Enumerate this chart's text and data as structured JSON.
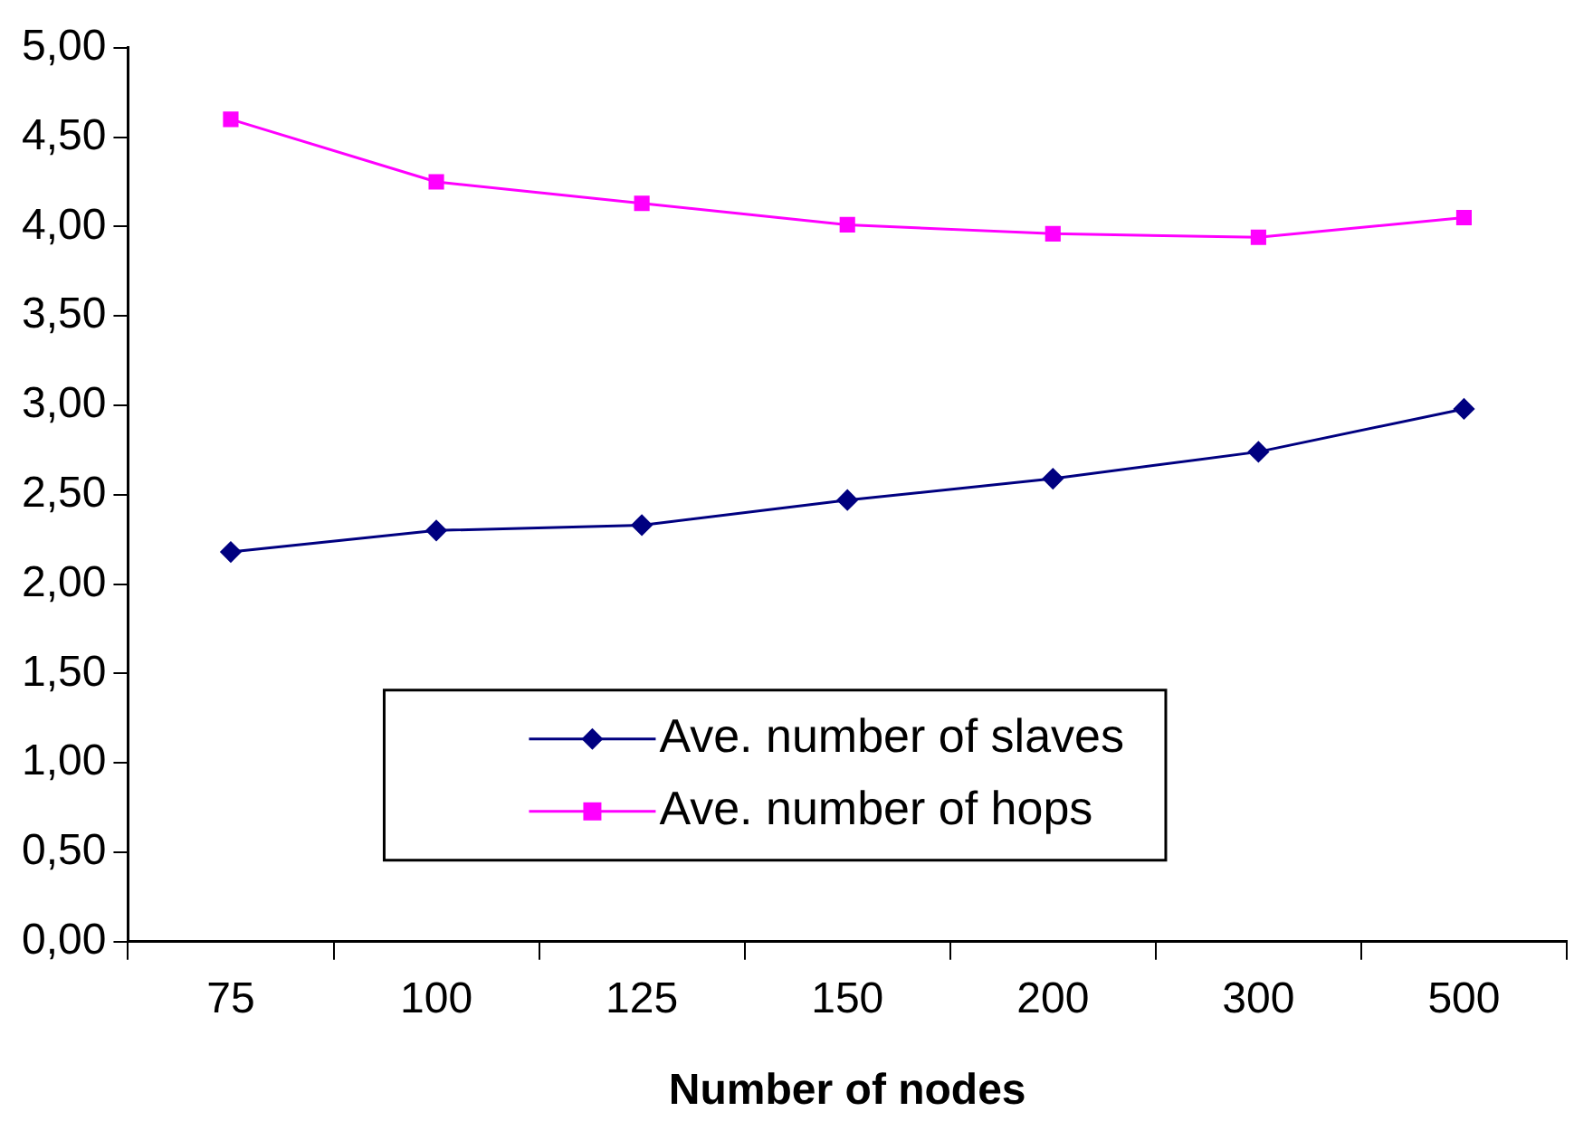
{
  "chart_data": {
    "type": "line",
    "xlabel": "Number of nodes",
    "categories": [
      "75",
      "100",
      "125",
      "150",
      "200",
      "300",
      "500"
    ],
    "series": [
      {
        "name": "Ave. number of slaves",
        "color": "#000080",
        "marker": "diamond",
        "values": [
          2.18,
          2.3,
          2.33,
          2.47,
          2.59,
          2.74,
          2.98
        ]
      },
      {
        "name": "Ave. number of hops",
        "color": "#ff00ff",
        "marker": "square",
        "values": [
          4.6,
          4.25,
          4.13,
          4.01,
          3.96,
          3.94,
          4.05
        ]
      }
    ],
    "ylim": [
      0,
      5
    ],
    "yticks": [
      {
        "value": 0,
        "label": "0,00"
      },
      {
        "value": 0.5,
        "label": "0,50"
      },
      {
        "value": 1,
        "label": "1,00"
      },
      {
        "value": 1.5,
        "label": "1,50"
      },
      {
        "value": 2,
        "label": "2,00"
      },
      {
        "value": 2.5,
        "label": "2,50"
      },
      {
        "value": 3,
        "label": "3,00"
      },
      {
        "value": 3.5,
        "label": "3,50"
      },
      {
        "value": 4,
        "label": "4,00"
      },
      {
        "value": 4.5,
        "label": "4,50"
      },
      {
        "value": 5,
        "label": "5,00"
      }
    ],
    "grid": false,
    "legend": "bottom",
    "line_style": "solid"
  }
}
